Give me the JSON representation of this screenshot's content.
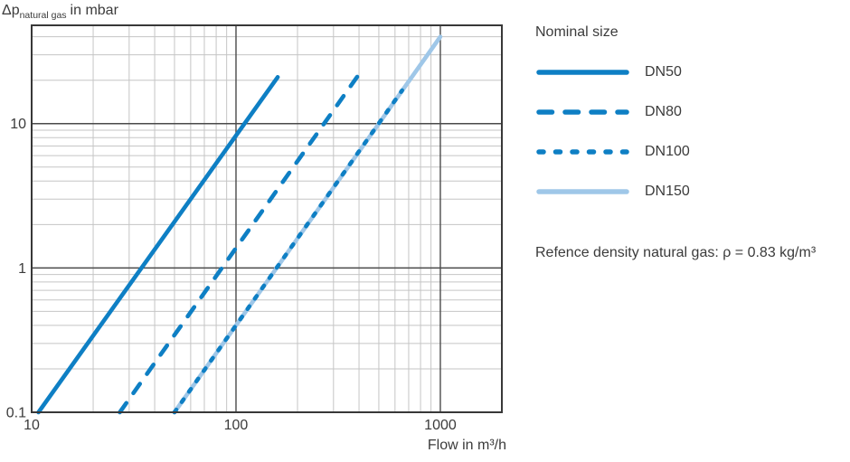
{
  "chart_data": {
    "type": "line",
    "x_scale": "log",
    "y_scale": "log",
    "xlim": [
      10,
      2000
    ],
    "ylim": [
      0.1,
      48
    ],
    "xlabel": "Flow in m³/h",
    "ylabel_parts": {
      "main": "Δp",
      "sub": "natural gas",
      "rest": "in mbar"
    },
    "x_ticks": [
      {
        "v": 10,
        "label": "10"
      },
      {
        "v": 100,
        "label": "100"
      },
      {
        "v": 1000,
        "label": "1000"
      }
    ],
    "y_ticks": [
      {
        "v": 0.1,
        "label": "0.1"
      },
      {
        "v": 1,
        "label": "1"
      },
      {
        "v": 10,
        "label": "10"
      }
    ],
    "x_minor_grid": [
      20,
      30,
      40,
      50,
      60,
      70,
      80,
      90,
      200,
      300,
      400,
      500,
      600,
      700,
      800,
      900
    ],
    "x_major_grid": [
      100,
      1000
    ],
    "y_minor_grid": [
      0.2,
      0.3,
      0.4,
      0.5,
      0.6,
      0.7,
      0.8,
      0.9,
      2,
      3,
      4,
      5,
      6,
      7,
      8,
      9,
      20,
      30,
      40
    ],
    "y_major_grid": [
      1,
      10
    ],
    "grid": "log minor + major, full frame",
    "legend_position": "right",
    "legend_title": "Nominal size",
    "series": [
      {
        "name": "DN50",
        "style": "solid",
        "color": "#0e7fc4",
        "points": [
          [
            10.8,
            0.1
          ],
          [
            160,
            21
          ]
        ]
      },
      {
        "name": "DN80",
        "style": "long-dash",
        "color": "#0e7fc4",
        "points": [
          [
            27,
            0.1
          ],
          [
            400,
            22
          ]
        ]
      },
      {
        "name": "DN100",
        "style": "short-dash",
        "color": "#0e7fc4",
        "points": [
          [
            50,
            0.1
          ],
          [
            650,
            17
          ]
        ]
      },
      {
        "name": "DN150",
        "style": "solid",
        "color": "#9fc7e8",
        "points": [
          [
            50,
            0.1
          ],
          [
            1000,
            40
          ]
        ]
      }
    ],
    "note": "Refence density natural gas: ρ = 0.83 kg/m³"
  },
  "colors": {
    "accent_blue": "#0e7fc4",
    "accent_light_blue": "#9fc7e8",
    "grid_minor": "#c5c5c5",
    "grid_major": "#4a4a4a",
    "frame": "#383838",
    "text": "#3b3b3b"
  }
}
